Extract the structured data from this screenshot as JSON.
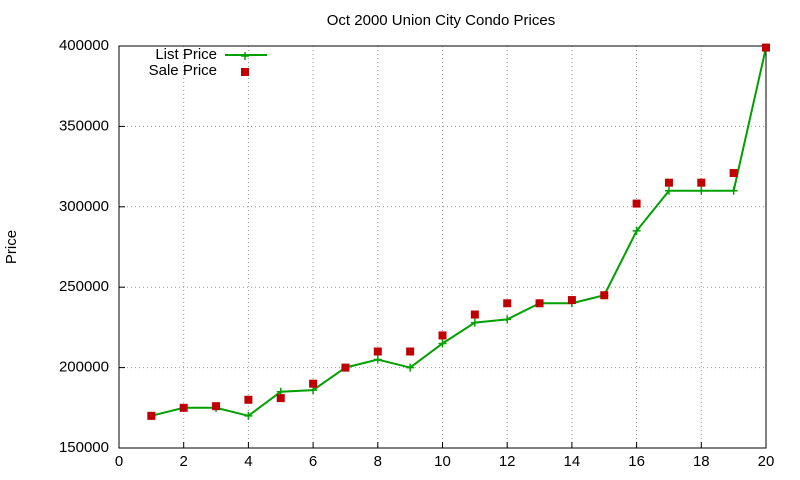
{
  "chart_data": {
    "type": "line",
    "title": "Oct 2000 Union City Condo Prices",
    "ylabel": "Price",
    "x": [
      1,
      2,
      3,
      4,
      5,
      6,
      7,
      8,
      9,
      10,
      11,
      12,
      13,
      14,
      15,
      16,
      17,
      18,
      19,
      20
    ],
    "series": [
      {
        "name": "List Price",
        "color": "#00a000",
        "mode": "linespoints",
        "values": [
          170000,
          175000,
          175000,
          170000,
          185000,
          186000,
          200000,
          205000,
          200000,
          215000,
          228000,
          230000,
          240000,
          240000,
          245000,
          285000,
          310000,
          310000,
          310000,
          399000
        ]
      },
      {
        "name": "Sale Price",
        "color": "#c00000",
        "mode": "points",
        "values": [
          170000,
          175000,
          176000,
          180000,
          181000,
          190000,
          200000,
          210000,
          210000,
          220000,
          233000,
          240000,
          240000,
          242000,
          245000,
          302000,
          315000,
          315000,
          321000,
          399000
        ]
      }
    ],
    "xlim": [
      0,
      20
    ],
    "xticks": [
      0,
      2,
      4,
      6,
      8,
      10,
      12,
      14,
      16,
      18,
      20
    ],
    "ylim": [
      150000,
      400000
    ],
    "yticks": [
      150000,
      200000,
      250000,
      300000,
      350000,
      400000
    ],
    "grid": true,
    "legend": "top-left"
  }
}
